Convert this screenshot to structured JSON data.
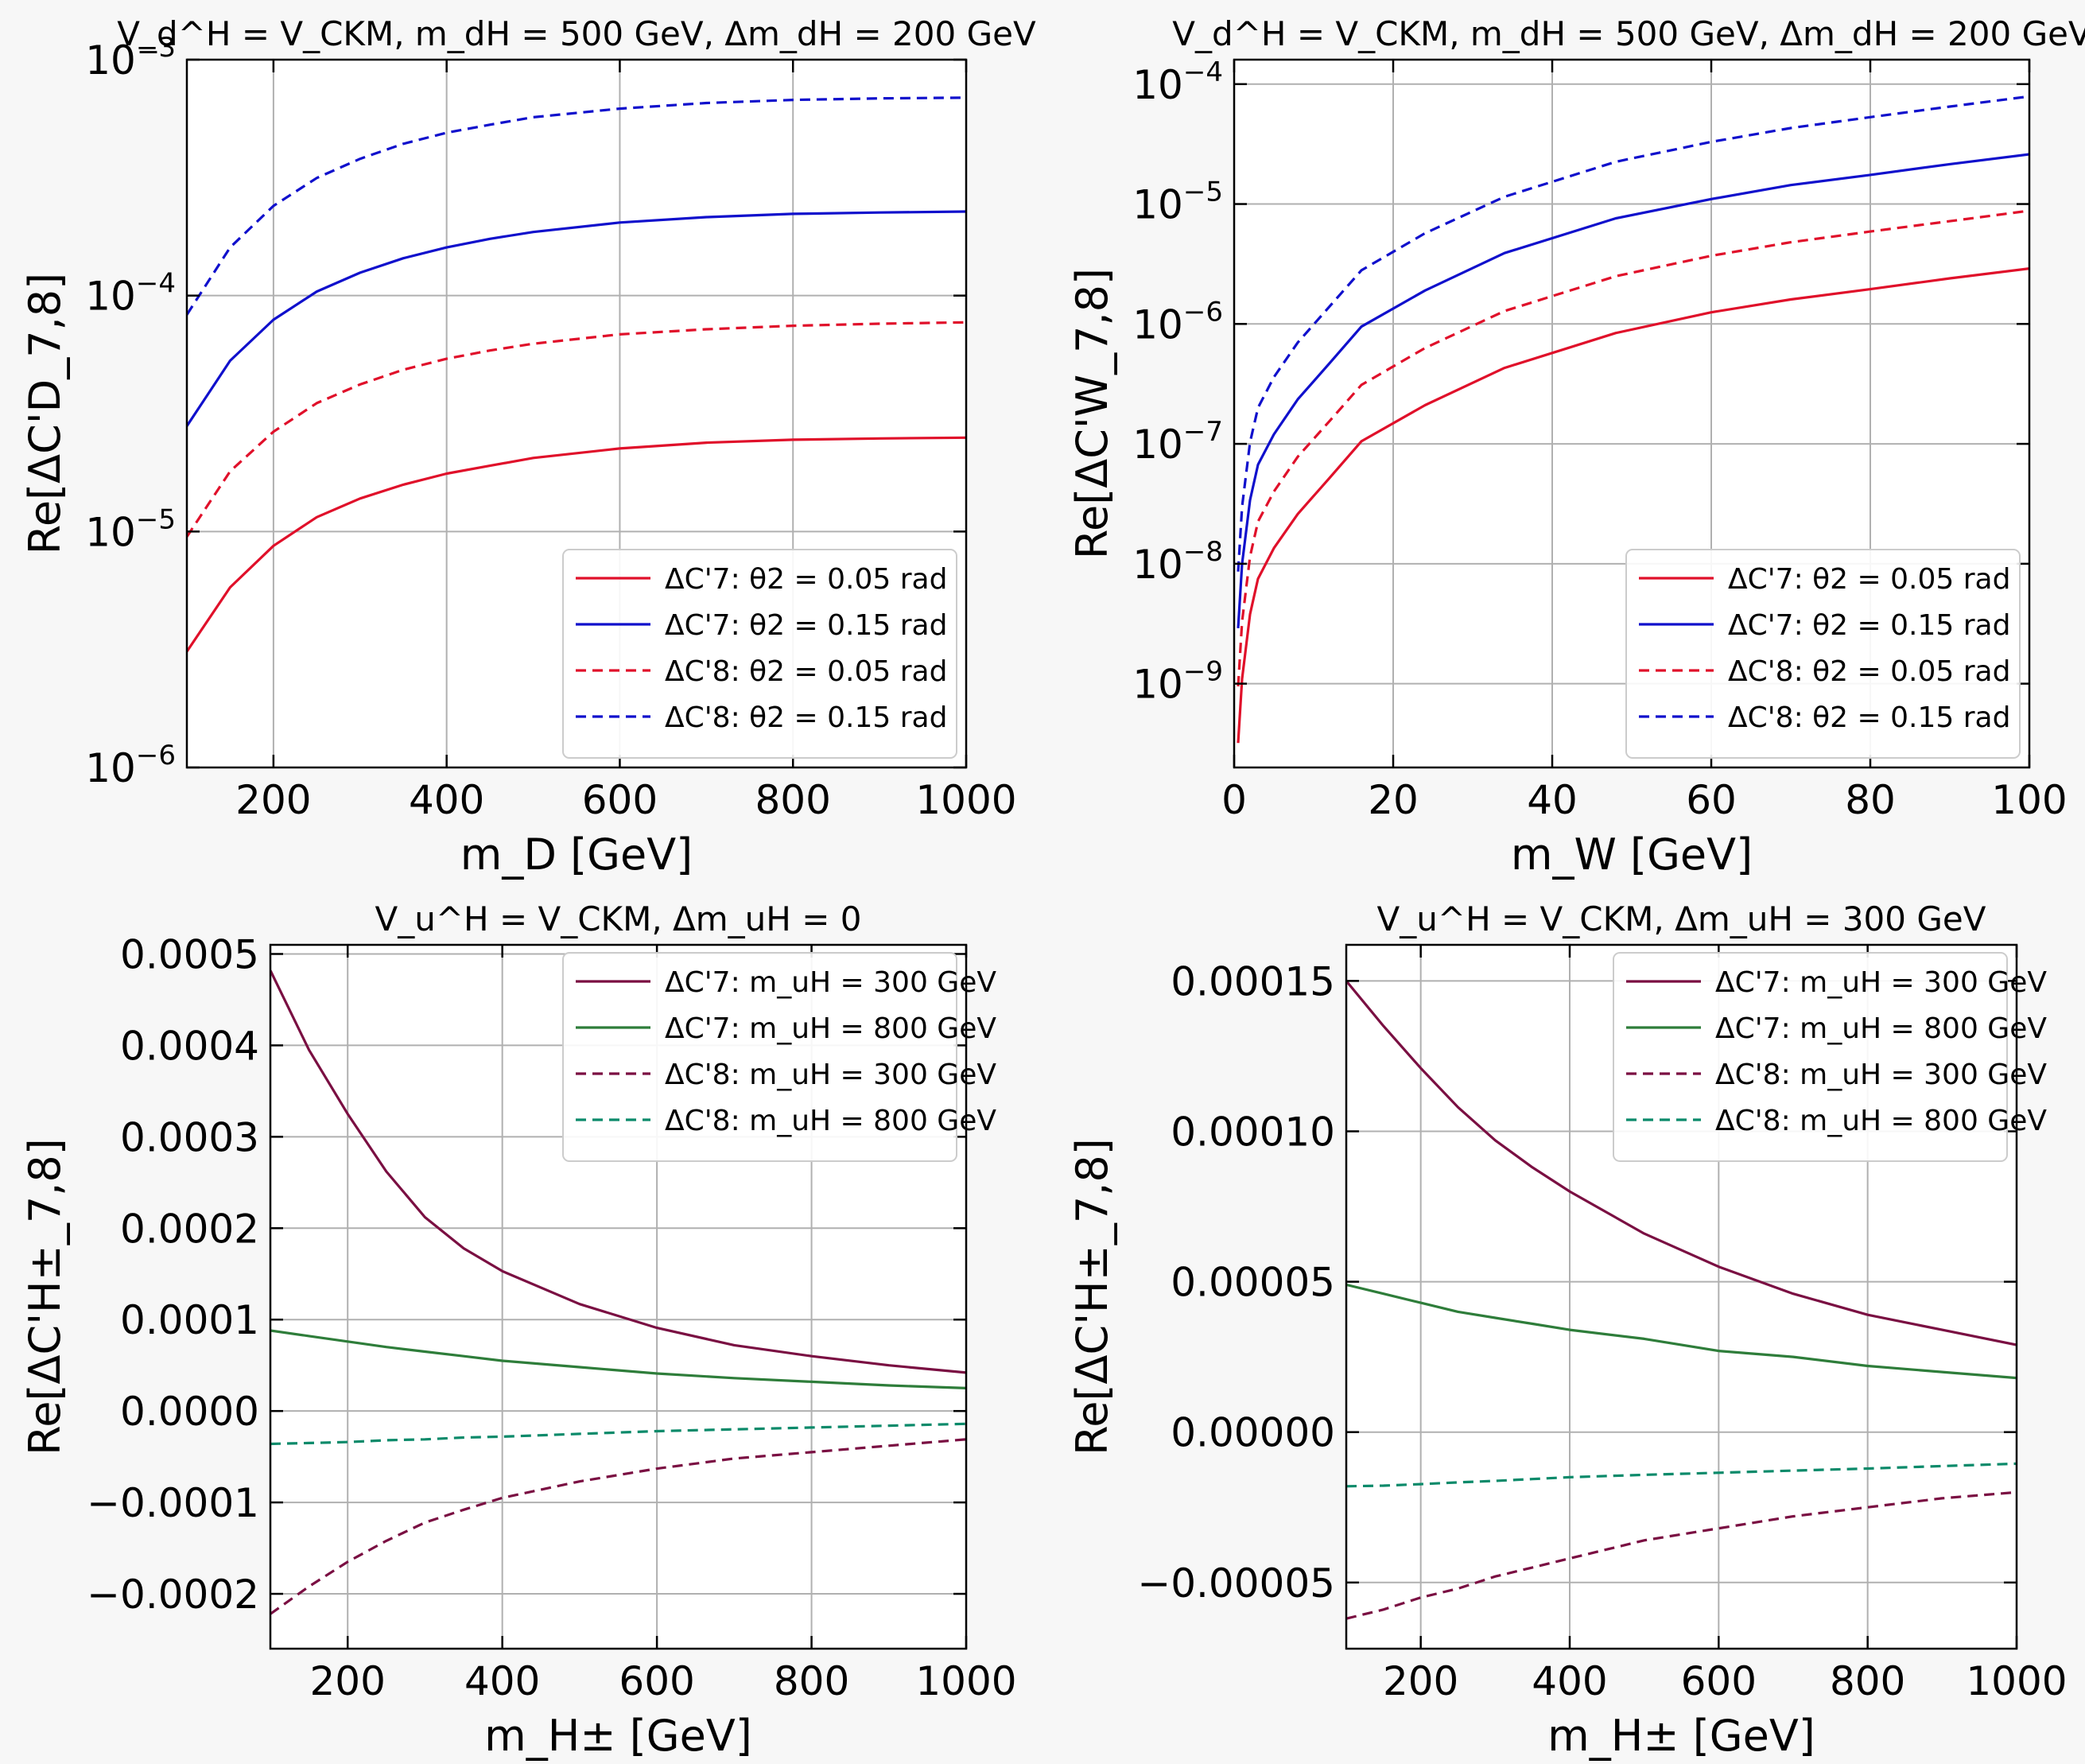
{
  "charts": [
    {
      "id": "top-left",
      "type": "line",
      "title": "V_d^H = V_CKM, m_dH = 500 GeV, Δm_dH = 200 GeV",
      "xlabel": "m_D [GeV]",
      "ylabel": "Re[ΔC'D_7,8]",
      "yscale": "log",
      "xlim": [
        100,
        1000
      ],
      "ylim": [
        1e-06,
        0.001
      ],
      "xticks": [
        200,
        400,
        600,
        800,
        1000
      ],
      "xtick_labels": [
        "200",
        "400",
        "600",
        "800",
        "1000"
      ],
      "yticks": [
        1e-06,
        1e-05,
        0.0001,
        0.001
      ],
      "ytick_labels": [
        "10^−6",
        "10^−5",
        "10^−4",
        "10^−3"
      ],
      "grid": true,
      "legend_position": "lower-right",
      "x": [
        100,
        150,
        200,
        250,
        300,
        350,
        400,
        450,
        500,
        600,
        700,
        800,
        900,
        1000
      ],
      "series": [
        {
          "name": "ΔC'7: θ2 = 0.05 rad",
          "color": "#e0102a",
          "dash": "solid",
          "values": [
            3.1e-06,
            5.8e-06,
            8.7e-06,
            1.15e-05,
            1.38e-05,
            1.58e-05,
            1.76e-05,
            1.9e-05,
            2.05e-05,
            2.25e-05,
            2.38e-05,
            2.45e-05,
            2.48e-05,
            2.5e-05
          ]
        },
        {
          "name": "ΔC'7: θ2 = 0.15 rad",
          "color": "#1010cc",
          "dash": "solid",
          "values": [
            2.8e-05,
            5.3e-05,
            7.9e-05,
            0.000104,
            0.000125,
            0.000144,
            0.00016,
            0.000174,
            0.000186,
            0.000204,
            0.000215,
            0.000222,
            0.000225,
            0.000227
          ]
        },
        {
          "name": "ΔC'8: θ2 = 0.05 rad",
          "color": "#e0102a",
          "dash": "dashed",
          "values": [
            9.5e-06,
            1.8e-05,
            2.65e-05,
            3.5e-05,
            4.2e-05,
            4.85e-05,
            5.4e-05,
            5.85e-05,
            6.25e-05,
            6.85e-05,
            7.2e-05,
            7.45e-05,
            7.6e-05,
            7.7e-05
          ]
        },
        {
          "name": "ΔC'8: θ2 = 0.15 rad",
          "color": "#1010cc",
          "dash": "dashed",
          "values": [
            8.3e-05,
            0.00016,
            0.00024,
            0.000315,
            0.00038,
            0.00044,
            0.00049,
            0.00053,
            0.00057,
            0.00062,
            0.000655,
            0.000675,
            0.000685,
            0.00069
          ]
        }
      ]
    },
    {
      "id": "top-right",
      "type": "line",
      "title": "V_d^H = V_CKM, m_dH = 500 GeV, Δm_dH = 200 GeV",
      "xlabel": "m_W [GeV]",
      "ylabel": "Re[ΔC'W_7,8]",
      "yscale": "log",
      "xlim": [
        0,
        100
      ],
      "ylim": [
        2e-10,
        0.00016
      ],
      "xticks": [
        0,
        20,
        40,
        60,
        80,
        100
      ],
      "xtick_labels": [
        "0",
        "20",
        "40",
        "60",
        "80",
        "100"
      ],
      "yticks": [
        1e-09,
        1e-08,
        1e-07,
        1e-06,
        1e-05,
        0.0001
      ],
      "ytick_labels": [
        "10^−9",
        "10^−8",
        "10^−7",
        "10^−6",
        "10^−5",
        "10^−4"
      ],
      "grid": true,
      "legend_position": "lower-right",
      "x": [
        0.5,
        1,
        2,
        3,
        5,
        8,
        12,
        16,
        24,
        34,
        48,
        60,
        70,
        80,
        90,
        100
      ],
      "series": [
        {
          "name": "ΔC'7: θ2 = 0.05 rad",
          "color": "#e0102a",
          "dash": "solid",
          "values": [
            3.2e-10,
            1.1e-09,
            3.8e-09,
            7.5e-09,
            1.35e-08,
            2.6e-08,
            5.2e-08,
            1.05e-07,
            2.1e-07,
            4.3e-07,
            8.4e-07,
            1.25e-06,
            1.6e-06,
            1.95e-06,
            2.4e-06,
            2.9e-06
          ]
        },
        {
          "name": "ΔC'7: θ2 = 0.15 rad",
          "color": "#1010cc",
          "dash": "solid",
          "values": [
            2.9e-09,
            1e-08,
            3.4e-08,
            6.7e-08,
            1.2e-07,
            2.35e-07,
            4.7e-07,
            9.5e-07,
            1.9e-06,
            3.9e-06,
            7.6e-06,
            1.1e-05,
            1.44e-05,
            1.75e-05,
            2.15e-05,
            2.6e-05
          ]
        },
        {
          "name": "ΔC'8: θ2 = 0.05 rad",
          "color": "#e0102a",
          "dash": "dashed",
          "values": [
            9.5e-10,
            3.3e-09,
            1.15e-08,
            2.25e-08,
            4e-08,
            7.8e-08,
            1.55e-07,
            3.1e-07,
            6.3e-07,
            1.28e-06,
            2.5e-06,
            3.7e-06,
            4.8e-06,
            5.9e-06,
            7.2e-06,
            8.8e-06
          ]
        },
        {
          "name": "ΔC'8: θ2 = 0.15 rad",
          "color": "#1010cc",
          "dash": "dashed",
          "values": [
            8.6e-09,
            3e-08,
            1.03e-07,
            2e-07,
            3.6e-07,
            7e-07,
            1.4e-06,
            2.8e-06,
            5.7e-06,
            1.15e-05,
            2.25e-05,
            3.3e-05,
            4.3e-05,
            5.3e-05,
            6.5e-05,
            7.9e-05
          ]
        }
      ]
    },
    {
      "id": "bottom-left",
      "type": "line",
      "title": "V_u^H = V_CKM, Δm_uH = 0",
      "xlabel": "m_H± [GeV]",
      "ylabel": "Re[ΔC'H±_7,8]",
      "yscale": "linear",
      "xlim": [
        100,
        1000
      ],
      "ylim": [
        -0.00026,
        0.00051
      ],
      "xticks": [
        200,
        400,
        600,
        800,
        1000
      ],
      "xtick_labels": [
        "200",
        "400",
        "600",
        "800",
        "1000"
      ],
      "yticks": [
        -0.0002,
        -0.0001,
        0,
        0.0001,
        0.0002,
        0.0003,
        0.0004,
        0.0005
      ],
      "ytick_labels": [
        "−0.0002",
        "−0.0001",
        "0.0000",
        "0.0001",
        "0.0002",
        "0.0003",
        "0.0004",
        "0.0005"
      ],
      "grid": true,
      "legend_position": "upper-right",
      "x": [
        100,
        150,
        200,
        250,
        300,
        350,
        400,
        500,
        600,
        700,
        800,
        900,
        1000
      ],
      "series": [
        {
          "name": "ΔC'7: m_uH = 300 GeV",
          "color": "#7a0f42",
          "color2": "#5c2a7a",
          "dash": "solid",
          "values": [
            0.000482,
            0.000395,
            0.000325,
            0.000262,
            0.000212,
            0.000178,
            0.000153,
            0.000117,
            9.1e-05,
            7.2e-05,
            6e-05,
            5e-05,
            4.2e-05
          ]
        },
        {
          "name": "ΔC'7: m_uH = 800 GeV",
          "color": "#2e7d3a",
          "color2": "#0b8a6a",
          "dash": "solid",
          "values": [
            8.8e-05,
            8.2e-05,
            7.6e-05,
            7e-05,
            6.5e-05,
            6e-05,
            5.5e-05,
            4.8e-05,
            4.1e-05,
            3.6e-05,
            3.2e-05,
            2.8e-05,
            2.5e-05
          ]
        },
        {
          "name": "ΔC'8: m_uH = 300 GeV",
          "color": "#7a0f42",
          "color2": "#3a3a3a",
          "dash": "dashed",
          "values": [
            -0.000222,
            -0.000192,
            -0.000165,
            -0.000142,
            -0.000122,
            -0.000108,
            -9.5e-05,
            -7.7e-05,
            -6.3e-05,
            -5.2e-05,
            -4.5e-05,
            -3.8e-05,
            -3.1e-05
          ]
        },
        {
          "name": "ΔC'8: m_uH = 800 GeV",
          "color": "#0b8a6a",
          "color2": "#3a3a3a",
          "dash": "dashed",
          "values": [
            -3.6e-05,
            -3.5e-05,
            -3.4e-05,
            -3.2e-05,
            -3.1e-05,
            -2.9e-05,
            -2.8e-05,
            -2.5e-05,
            -2.2e-05,
            -2e-05,
            -1.8e-05,
            -1.6e-05,
            -1.4e-05
          ]
        }
      ]
    },
    {
      "id": "bottom-right",
      "type": "line",
      "title": "V_u^H = V_CKM, Δm_uH = 300 GeV",
      "xlabel": "m_H± [GeV]",
      "ylabel": "Re[ΔC'H±_7,8]",
      "yscale": "linear",
      "xlim": [
        100,
        1000
      ],
      "ylim": [
        -7.2e-05,
        0.000162
      ],
      "xticks": [
        200,
        400,
        600,
        800,
        1000
      ],
      "xtick_labels": [
        "200",
        "400",
        "600",
        "800",
        "1000"
      ],
      "yticks": [
        -5e-05,
        0,
        5e-05,
        0.0001,
        0.00015
      ],
      "ytick_labels": [
        "−0.00005",
        "0.00000",
        "0.00005",
        "0.00010",
        "0.00015"
      ],
      "grid": true,
      "legend_position": "upper-right",
      "x": [
        100,
        150,
        200,
        250,
        300,
        350,
        400,
        500,
        600,
        700,
        800,
        900,
        1000
      ],
      "series": [
        {
          "name": "ΔC'7: m_uH = 300 GeV",
          "color": "#7a0f42",
          "color2": "#5c2a7a",
          "dash": "solid",
          "values": [
            0.00015,
            0.000135,
            0.000121,
            0.000108,
            9.7e-05,
            8.8e-05,
            8e-05,
            6.6e-05,
            5.5e-05,
            4.6e-05,
            3.9e-05,
            3.4e-05,
            2.9e-05
          ]
        },
        {
          "name": "ΔC'7: m_uH = 800 GeV",
          "color": "#2e7d3a",
          "color2": "#0b8a6a",
          "dash": "solid",
          "values": [
            4.9e-05,
            4.6e-05,
            4.3e-05,
            4e-05,
            3.8e-05,
            3.6e-05,
            3.4e-05,
            3.1e-05,
            2.7e-05,
            2.5e-05,
            2.2e-05,
            2e-05,
            1.8e-05
          ]
        },
        {
          "name": "ΔC'8: m_uH = 300 GeV",
          "color": "#7a0f42",
          "color2": "#3a3a3a",
          "dash": "dashed",
          "values": [
            -6.2e-05,
            -5.9e-05,
            -5.5e-05,
            -5.2e-05,
            -4.8e-05,
            -4.5e-05,
            -4.2e-05,
            -3.6e-05,
            -3.2e-05,
            -2.8e-05,
            -2.5e-05,
            -2.2e-05,
            -2e-05
          ]
        },
        {
          "name": "ΔC'8: m_uH = 800 GeV",
          "color": "#0b8a6a",
          "color2": "#3a3a3a",
          "dash": "dashed",
          "values": [
            -1.8e-05,
            -1.78e-05,
            -1.73e-05,
            -1.67e-05,
            -1.62e-05,
            -1.56e-05,
            -1.5e-05,
            -1.42e-05,
            -1.35e-05,
            -1.28e-05,
            -1.21e-05,
            -1.13e-05,
            -1.05e-05
          ]
        }
      ]
    }
  ]
}
